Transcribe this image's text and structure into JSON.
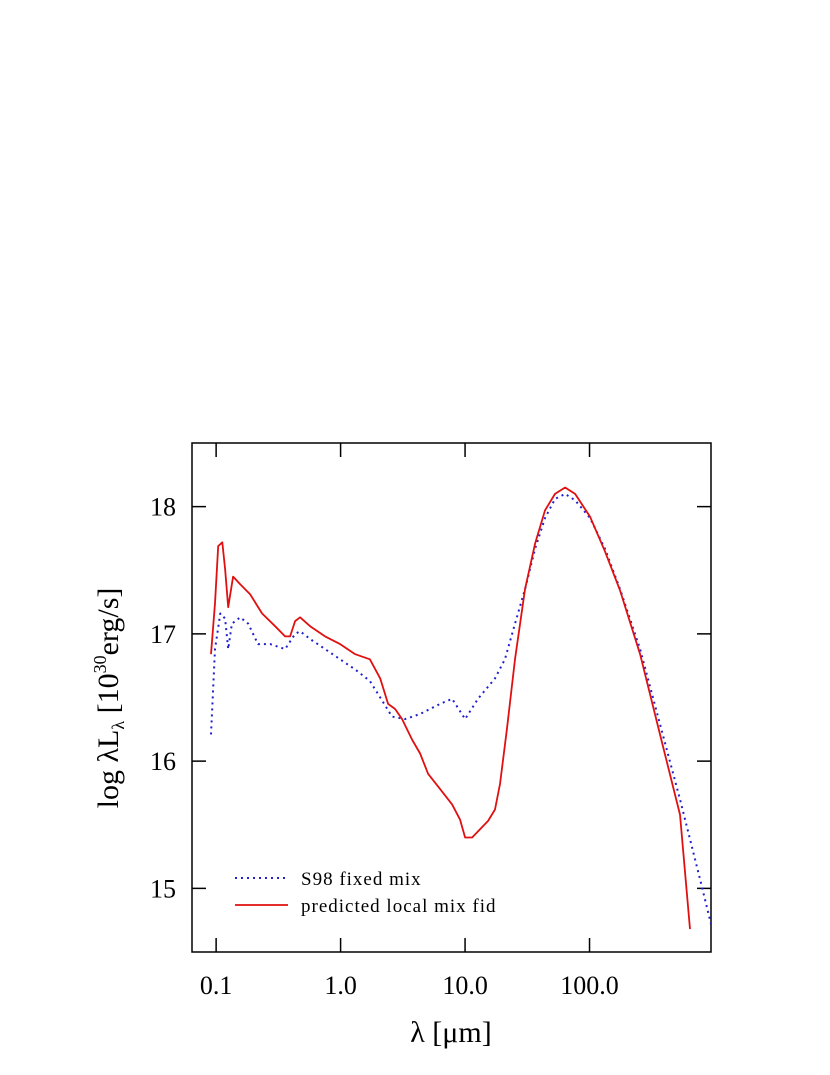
{
  "chart_data": {
    "type": "line",
    "x_label": "λ [μm]",
    "y_label": {
      "main": "log λL",
      "sub": "λ",
      "mid": " [10",
      "sup": "30",
      "end": "erg/s]"
    },
    "log_x": true,
    "xlim": [
      0.064,
      946
    ],
    "ylim": [
      14.5,
      18.5
    ],
    "xticks": [
      0.1,
      {
        "value": 1,
        "label": "1.0"
      },
      {
        "value": 10,
        "label": "10.0"
      },
      {
        "value": 100,
        "label": "100.0"
      }
    ],
    "yticks": [
      15,
      16,
      17,
      18
    ],
    "legend": "bottom-left",
    "series": [
      {
        "name": "S98 fixed mix",
        "color": "#2020d0",
        "dash": "dotted",
        "x": [
          0.091,
          0.098,
          0.108,
          0.118,
          0.125,
          0.134,
          0.156,
          0.181,
          0.217,
          0.272,
          0.358,
          0.431,
          0.473,
          0.569,
          0.751,
          0.99,
          1.31,
          1.72,
          2.08,
          2.59,
          3.3,
          4.35,
          6.3,
          7.87,
          10.0,
          12.7,
          17.4,
          20.9,
          25.2,
          30.3,
          36.5,
          43.9,
          52.8,
          63.6,
          76.5,
          101,
          133,
          176,
          255,
          368,
          533,
          773,
          946
        ],
        "values": [
          16.21,
          16.88,
          17.16,
          17.12,
          16.88,
          17.08,
          17.13,
          17.08,
          16.92,
          16.92,
          16.88,
          17.0,
          17.02,
          16.96,
          16.88,
          16.8,
          16.72,
          16.63,
          16.5,
          16.35,
          16.33,
          16.37,
          16.45,
          16.49,
          16.33,
          16.49,
          16.65,
          16.8,
          17.08,
          17.35,
          17.67,
          17.91,
          18.06,
          18.1,
          18.05,
          17.91,
          17.67,
          17.35,
          16.88,
          16.29,
          15.7,
          15.07,
          14.72
        ]
      },
      {
        "name": "predicted local mix fid",
        "color": "#e01010",
        "dash": "solid",
        "x": [
          0.091,
          0.098,
          0.104,
          0.112,
          0.118,
          0.125,
          0.137,
          0.156,
          0.188,
          0.234,
          0.298,
          0.358,
          0.393,
          0.431,
          0.473,
          0.569,
          0.751,
          0.99,
          1.31,
          1.72,
          2.08,
          2.41,
          2.74,
          3.12,
          3.75,
          4.35,
          5.05,
          6.3,
          7.87,
          9.12,
          10.0,
          11.4,
          15.3,
          17.4,
          19.1,
          21.7,
          25.2,
          30.3,
          36.5,
          43.9,
          52.8,
          63.6,
          76.5,
          101,
          133,
          176,
          255,
          368,
          533,
          641
        ],
        "values": [
          16.84,
          17.24,
          17.69,
          17.72,
          17.51,
          17.21,
          17.45,
          17.39,
          17.31,
          17.16,
          17.06,
          16.98,
          16.98,
          17.1,
          17.13,
          17.06,
          16.98,
          16.92,
          16.84,
          16.8,
          16.65,
          16.45,
          16.41,
          16.33,
          16.17,
          16.06,
          15.9,
          15.78,
          15.66,
          15.54,
          15.4,
          15.4,
          15.53,
          15.62,
          15.82,
          16.25,
          16.8,
          17.35,
          17.71,
          17.97,
          18.1,
          18.15,
          18.1,
          17.92,
          17.65,
          17.34,
          16.84,
          16.21,
          15.58,
          14.68
        ]
      }
    ]
  }
}
